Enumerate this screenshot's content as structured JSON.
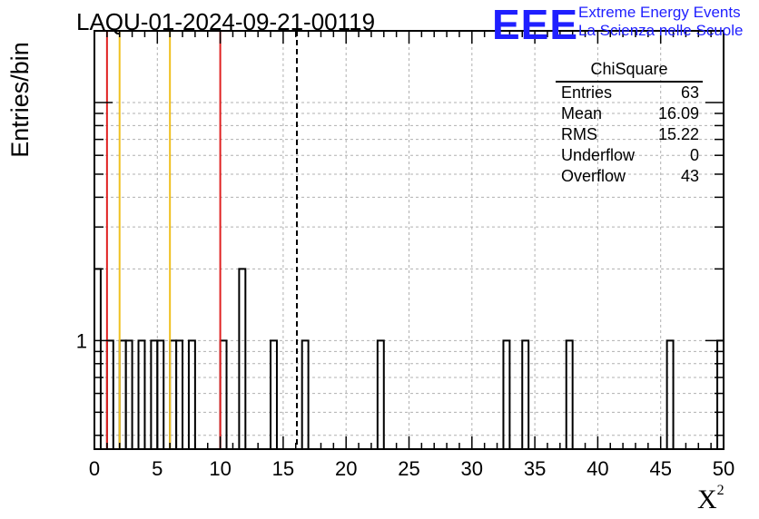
{
  "chart_data": {
    "type": "histogram",
    "title": "LAQU-01-2024-09-21-00119",
    "xlabel": "X",
    "xlabel_superscript": "2",
    "ylabel": "Entries/bin",
    "xlim": [
      0,
      50
    ],
    "ylim_log": [
      0.35,
      20
    ],
    "y_scale": "log",
    "bin_width": 0.5,
    "x_ticks": [
      "0",
      "5",
      "10",
      "15",
      "20",
      "25",
      "30",
      "35",
      "40",
      "45",
      "50"
    ],
    "y_tick_labels": [
      "1"
    ],
    "bins": [
      {
        "x": 0.0,
        "count": 2
      },
      {
        "x": 1.0,
        "count": 1
      },
      {
        "x": 2.0,
        "count": 1
      },
      {
        "x": 2.5,
        "count": 1
      },
      {
        "x": 3.5,
        "count": 1
      },
      {
        "x": 4.5,
        "count": 1
      },
      {
        "x": 5.0,
        "count": 1
      },
      {
        "x": 6.0,
        "count": 1
      },
      {
        "x": 6.5,
        "count": 1
      },
      {
        "x": 7.5,
        "count": 1
      },
      {
        "x": 10.0,
        "count": 1
      },
      {
        "x": 11.5,
        "count": 2
      },
      {
        "x": 14.0,
        "count": 1
      },
      {
        "x": 16.5,
        "count": 1
      },
      {
        "x": 22.5,
        "count": 1
      },
      {
        "x": 32.5,
        "count": 1
      },
      {
        "x": 34.0,
        "count": 1
      },
      {
        "x": 37.5,
        "count": 1
      },
      {
        "x": 45.5,
        "count": 1
      },
      {
        "x": 49.5,
        "count": 1
      }
    ],
    "vertical_lines": [
      {
        "x": 1.0,
        "color": "#e02020",
        "style": "solid"
      },
      {
        "x": 2.0,
        "color": "#f0c020",
        "style": "solid"
      },
      {
        "x": 6.0,
        "color": "#f0c020",
        "style": "solid"
      },
      {
        "x": 10.0,
        "color": "#e02020",
        "style": "solid"
      },
      {
        "x": 16.09,
        "color": "#000000",
        "style": "dashed"
      }
    ],
    "grid": true
  },
  "stats": {
    "title": "ChiSquare",
    "rows": [
      {
        "label": "Entries",
        "value": "63"
      },
      {
        "label": "Mean",
        "value": "16.09"
      },
      {
        "label": "RMS",
        "value": "15.22"
      },
      {
        "label": "Underflow",
        "value": "0"
      },
      {
        "label": "Overflow",
        "value": "43"
      }
    ]
  },
  "logo": {
    "mark": "EEE",
    "line1": "Extreme Energy Events",
    "line2": "La Scienza nelle Scuole",
    "color": "#1f1fff"
  }
}
